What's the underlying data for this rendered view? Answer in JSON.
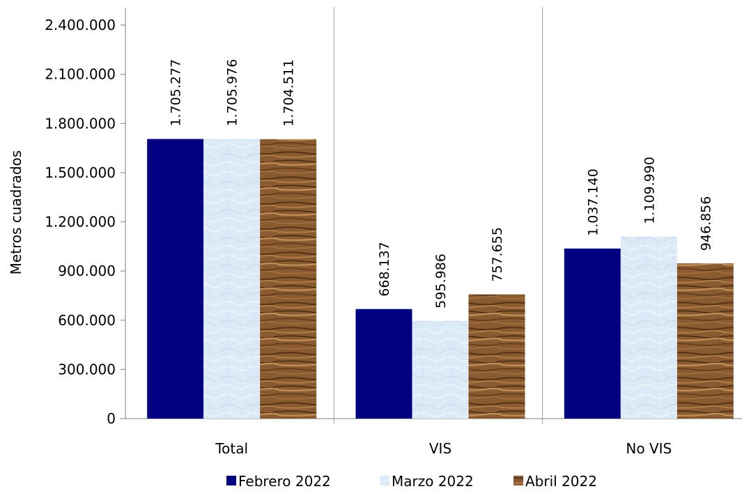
{
  "chart_data": {
    "type": "bar",
    "title": "",
    "xlabel": "",
    "ylabel": "Metros cuadrados",
    "ylim": [
      0,
      2400000
    ],
    "ytick_values": [
      0,
      300000,
      600000,
      900000,
      1200000,
      1500000,
      1800000,
      2100000,
      2400000
    ],
    "ytick_labels": [
      "0",
      "300.000",
      "600.000",
      "900.000",
      "1.200.000",
      "1.500.000",
      "1.800.000",
      "2.100.000",
      "2.400.000"
    ],
    "categories": [
      "Total",
      "VIS",
      "No VIS"
    ],
    "series": [
      {
        "name": "Febrero 2022",
        "color": "#000080",
        "pattern": "solid",
        "values": [
          1705277,
          668137,
          1037140
        ],
        "labels": [
          "1.705.277",
          "668.137",
          "1.037.140"
        ]
      },
      {
        "name": "Marzo 2022",
        "color": "#dbe8f5",
        "pattern": "paper-texture",
        "values": [
          1705976,
          595986,
          1109990
        ],
        "labels": [
          "1.705.976",
          "595.986",
          "1.109.990"
        ]
      },
      {
        "name": "Abril 2022",
        "color": "#8b5a2b",
        "pattern": "wood-texture",
        "values": [
          1704511,
          757655,
          946856
        ],
        "labels": [
          "1.704.511",
          "757.655",
          "946.856"
        ]
      }
    ],
    "grid": false,
    "category_separators": true,
    "data_labels": "rotated-vertical",
    "legend": "bottom-center"
  }
}
